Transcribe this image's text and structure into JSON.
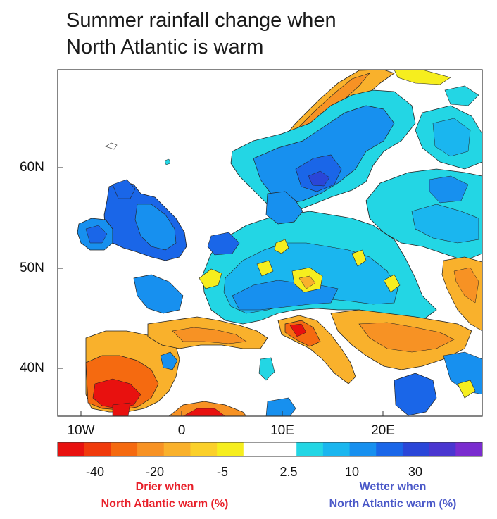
{
  "title": {
    "line1": "Summer rainfall change when",
    "line2": "North Atlantic is warm"
  },
  "axes": {
    "lat_labels": [
      "60N",
      "50N",
      "40N"
    ],
    "lon_labels": [
      "10W",
      "0",
      "10E",
      "20E"
    ]
  },
  "colorbar": {
    "colors": [
      "#e8110f",
      "#f03a0c",
      "#f56a10",
      "#f79224",
      "#f9b12c",
      "#fbd02a",
      "#f6ee1e",
      "#ffffff",
      "#ffffff",
      "#23d6e4",
      "#1ab6ef",
      "#1790ef",
      "#1a66e8",
      "#2a46d8",
      "#4a36d0",
      "#7a2ccf"
    ],
    "labels": [
      "-40",
      "-20",
      "-5",
      "2.5",
      "10",
      "30"
    ]
  },
  "notes": {
    "drier_line1": "Drier when",
    "drier_line2": "North Atlantic warm (%)",
    "wetter_line1": "Wetter when",
    "wetter_line2": "North Atlantic warm (%)"
  },
  "colors": {
    "drier_text": "#e8202a",
    "wetter_text": "#4a58c8"
  }
}
